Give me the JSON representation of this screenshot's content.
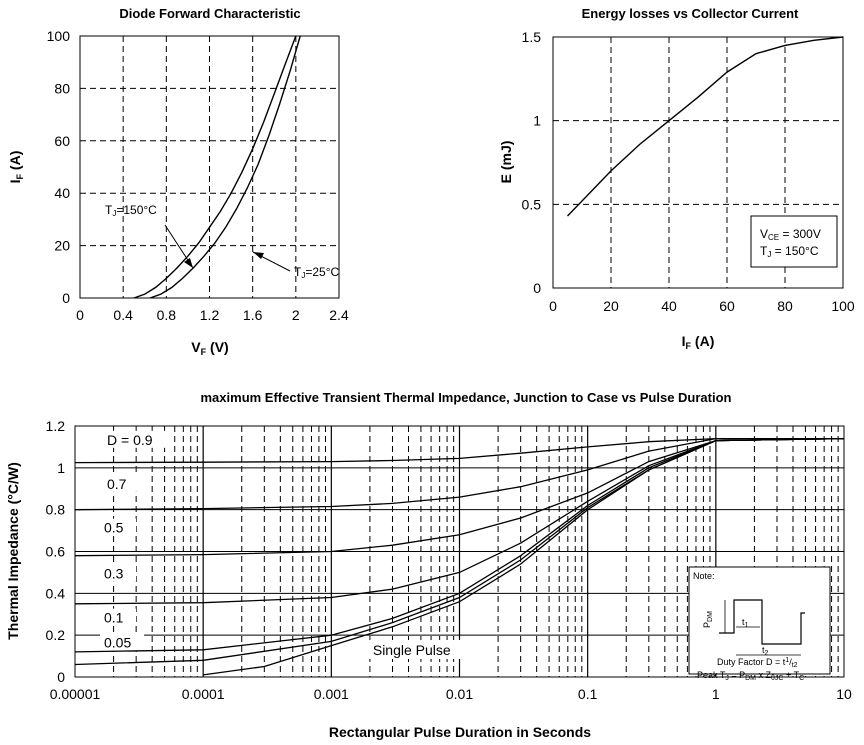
{
  "chart_data": [
    {
      "type": "line",
      "title": "Diode Forward Characteristic",
      "xlabel": "VF (V)",
      "ylabel": "IF (A)",
      "xlim": [
        0,
        2.4
      ],
      "ylim": [
        0,
        100
      ],
      "x_ticks": [
        "0",
        "0.4",
        "0.8",
        "1.2",
        "1.6",
        "2",
        "2.4"
      ],
      "y_ticks": [
        "0",
        "20",
        "40",
        "60",
        "80",
        "100"
      ],
      "grid": true,
      "series": [
        {
          "name": "TJ=150°C",
          "x": [
            0.5,
            0.6,
            0.7,
            0.8,
            0.9,
            1.0,
            1.1,
            1.2,
            1.3,
            1.4,
            1.5,
            1.6,
            1.7,
            1.8,
            1.9,
            2.0
          ],
          "y": [
            0,
            1.5,
            4,
            7.5,
            11.5,
            16,
            21,
            27,
            33,
            40,
            48,
            57,
            67,
            78,
            89,
            100
          ]
        },
        {
          "name": "TJ=25°C",
          "x": [
            0.65,
            0.75,
            0.85,
            0.95,
            1.05,
            1.15,
            1.25,
            1.35,
            1.45,
            1.55,
            1.65,
            1.75,
            1.85,
            1.95,
            2.04
          ],
          "y": [
            0,
            1.5,
            4,
            7.5,
            11.5,
            16,
            21,
            27,
            34,
            42,
            51,
            62,
            74,
            87,
            100
          ]
        }
      ],
      "annotations": [
        "TJ=150°C",
        "TJ=25°C"
      ]
    },
    {
      "type": "line",
      "title": "Energy losses vs Collector Current",
      "xlabel": "IF (A)",
      "ylabel": "E (mJ)",
      "xlim": [
        0,
        100
      ],
      "ylim": [
        0,
        1.5
      ],
      "x_ticks": [
        "0",
        "20",
        "40",
        "60",
        "80",
        "100"
      ],
      "y_ticks": [
        "0",
        "0.5",
        "1",
        "1.5"
      ],
      "grid": true,
      "series": [
        {
          "x": [
            5,
            10,
            20,
            30,
            40,
            50,
            60,
            70,
            80,
            90,
            100
          ],
          "y": [
            0.43,
            0.52,
            0.7,
            0.86,
            1.0,
            1.14,
            1.29,
            1.4,
            1.45,
            1.48,
            1.5
          ]
        }
      ],
      "annotations": [
        "VCE = 300V",
        "TJ = 150°C"
      ]
    },
    {
      "type": "line",
      "title": "maximum Effective Transient Thermal Impedance, Junction to Case vs Pulse Duration",
      "xlabel": "Rectangular Pulse Duration in Seconds",
      "ylabel": "Thermal Impedance (°C/W)",
      "xscale": "log",
      "xlim": [
        1e-05,
        10
      ],
      "ylim": [
        0,
        1.2
      ],
      "x_ticks": [
        "0.00001",
        "0.0001",
        "0.001",
        "0.01",
        "0.1",
        "1",
        "10"
      ],
      "y_ticks": [
        "0",
        "0.2",
        "0.4",
        "0.6",
        "0.8",
        "1",
        "1.2"
      ],
      "grid": true,
      "series": [
        {
          "name": "D = 0.9",
          "x": [
            1e-05,
            0.0001,
            0.001,
            0.003,
            0.01,
            0.03,
            0.1,
            0.3,
            1,
            10
          ],
          "y": [
            1.025,
            1.027,
            1.03,
            1.035,
            1.045,
            1.07,
            1.1,
            1.125,
            1.14,
            1.14
          ]
        },
        {
          "name": "0.7",
          "x": [
            1e-05,
            0.0001,
            0.001,
            0.003,
            0.01,
            0.03,
            0.1,
            0.3,
            1,
            10
          ],
          "y": [
            0.8,
            0.805,
            0.815,
            0.83,
            0.86,
            0.91,
            0.99,
            1.08,
            1.14,
            1.14
          ]
        },
        {
          "name": "0.5",
          "x": [
            1e-05,
            0.0001,
            0.001,
            0.003,
            0.01,
            0.03,
            0.1,
            0.3,
            1,
            10
          ],
          "y": [
            0.58,
            0.585,
            0.6,
            0.63,
            0.68,
            0.76,
            0.88,
            1.03,
            1.13,
            1.14
          ]
        },
        {
          "name": "0.3",
          "x": [
            1e-05,
            0.0001,
            0.001,
            0.003,
            0.01,
            0.03,
            0.1,
            0.3,
            1,
            10
          ],
          "y": [
            0.35,
            0.355,
            0.38,
            0.42,
            0.5,
            0.64,
            0.84,
            1.01,
            1.13,
            1.14
          ]
        },
        {
          "name": "0.1",
          "x": [
            1e-05,
            0.0001,
            0.001,
            0.003,
            0.01,
            0.03,
            0.1,
            0.3,
            1,
            10
          ],
          "y": [
            0.12,
            0.13,
            0.2,
            0.28,
            0.4,
            0.58,
            0.82,
            1.0,
            1.13,
            1.14
          ]
        },
        {
          "name": "0.05",
          "x": [
            1e-05,
            0.0001,
            0.001,
            0.003,
            0.01,
            0.03,
            0.1,
            0.3,
            1,
            10
          ],
          "y": [
            0.06,
            0.08,
            0.17,
            0.26,
            0.38,
            0.56,
            0.81,
            0.99,
            1.13,
            1.14
          ]
        },
        {
          "name": "Single Pulse",
          "x": [
            0.0001,
            0.0003,
            0.001,
            0.003,
            0.01,
            0.03,
            0.1,
            0.3,
            1,
            10
          ],
          "y": [
            0.01,
            0.05,
            0.15,
            0.24,
            0.36,
            0.54,
            0.8,
            0.99,
            1.13,
            1.14
          ]
        }
      ],
      "annotations": [
        "D = 0.9",
        "0.7",
        "0.5",
        "0.3",
        "0.1",
        "0.05",
        "Single Pulse"
      ],
      "note": {
        "title": "Note:",
        "pdm_label": "PDM",
        "t1_label": "t1",
        "t2_label": "t2",
        "duty_line": "Duty Factor  D = t1/t2",
        "peak_line": "Peak TJ = PDM x ZθJC + TC"
      }
    }
  ]
}
